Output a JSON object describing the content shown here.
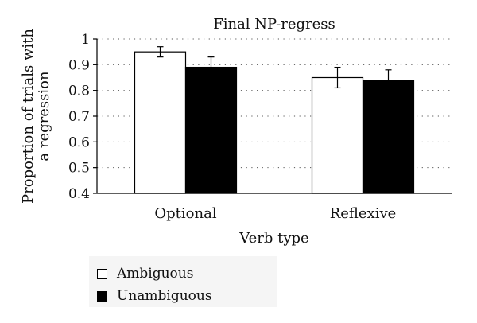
{
  "chart_data": {
    "type": "bar",
    "title": "Final NP-regress",
    "xlabel": "Verb type",
    "ylabel": [
      "Proportion of trials with",
      "a regression"
    ],
    "ylim": [
      0.4,
      1
    ],
    "yticks": [
      "0.4",
      "0.5",
      "0.6",
      "0.7",
      "0.8",
      "0.9",
      "1"
    ],
    "grid": "dotted horizontal",
    "categories": [
      "Optional",
      "Reflexive"
    ],
    "series": [
      {
        "name": "Ambiguous",
        "color": "#ffffff",
        "values": [
          0.95,
          0.85
        ],
        "errors": [
          0.02,
          0.04
        ]
      },
      {
        "name": "Unambiguous",
        "color": "#000000",
        "values": [
          0.89,
          0.84
        ],
        "errors": [
          0.04,
          0.04
        ]
      }
    ],
    "legend_position": "bottom-left"
  }
}
